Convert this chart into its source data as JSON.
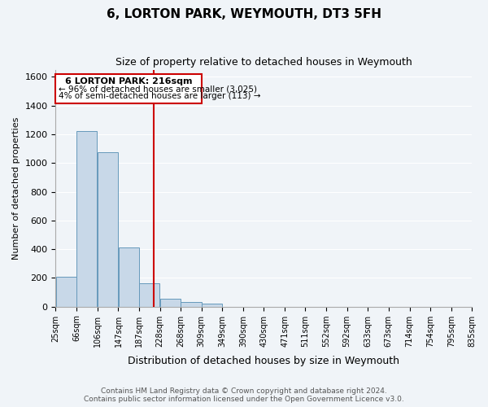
{
  "title": "6, LORTON PARK, WEYMOUTH, DT3 5FH",
  "subtitle": "Size of property relative to detached houses in Weymouth",
  "xlabel": "Distribution of detached houses by size in Weymouth",
  "ylabel": "Number of detached properties",
  "bin_labels": [
    "25sqm",
    "66sqm",
    "106sqm",
    "147sqm",
    "187sqm",
    "228sqm",
    "268sqm",
    "309sqm",
    "349sqm",
    "390sqm",
    "430sqm",
    "471sqm",
    "511sqm",
    "552sqm",
    "592sqm",
    "633sqm",
    "673sqm",
    "714sqm",
    "754sqm",
    "795sqm",
    "835sqm"
  ],
  "bar_heights": [
    205,
    1225,
    1075,
    410,
    160,
    55,
    30,
    20,
    0,
    0,
    0,
    0,
    0,
    0,
    0,
    0,
    0,
    0,
    0,
    0
  ],
  "bar_left_edges": [
    25,
    66,
    106,
    147,
    187,
    228,
    268,
    309,
    349,
    390,
    430,
    471,
    511,
    552,
    592,
    633,
    673,
    714,
    754,
    795
  ],
  "bar_widths": [
    41,
    40,
    41,
    40,
    41,
    40,
    41,
    40,
    41,
    40,
    41,
    40,
    41,
    40,
    41,
    40,
    41,
    40,
    41,
    40
  ],
  "tick_positions": [
    25,
    66,
    106,
    147,
    187,
    228,
    268,
    309,
    349,
    390,
    430,
    471,
    511,
    552,
    592,
    633,
    673,
    714,
    754,
    795,
    835
  ],
  "bar_color": "#c8d8e8",
  "bar_edge_color": "#6699bb",
  "property_line_x": 216,
  "property_line_color": "#cc0000",
  "ylim": [
    0,
    1650
  ],
  "yticks": [
    0,
    200,
    400,
    600,
    800,
    1000,
    1200,
    1400,
    1600
  ],
  "annotation_box_text_line1": "6 LORTON PARK: 216sqm",
  "annotation_box_text_line2": "← 96% of detached houses are smaller (3,025)",
  "annotation_box_text_line3": "4% of semi-detached houses are larger (113) →",
  "footer_line1": "Contains HM Land Registry data © Crown copyright and database right 2024.",
  "footer_line2": "Contains public sector information licensed under the Open Government Licence v3.0.",
  "background_color": "#f0f4f8",
  "xlim_left": 25,
  "xlim_right": 835
}
